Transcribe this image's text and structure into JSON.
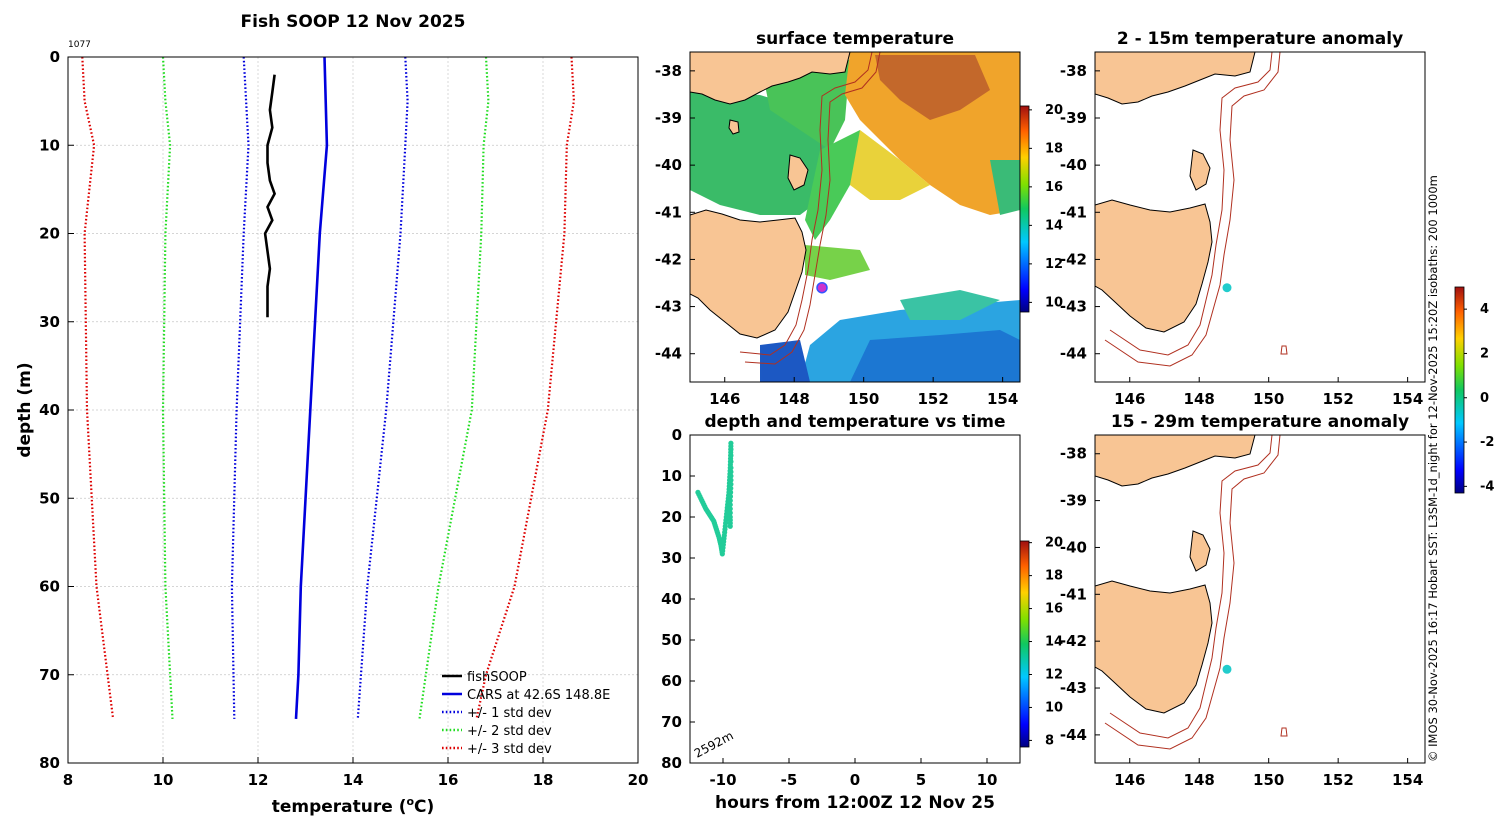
{
  "chart_data": [
    {
      "id": "profile",
      "type": "line",
      "title": "Fish SOOP 12 Nov 2025",
      "corner_label": "1077",
      "xlabel_prefix": "temperature (",
      "xlabel_sup": "o",
      "xlabel_suffix": "C)",
      "ylabel": "depth (m)",
      "xlim": [
        8,
        20
      ],
      "ylim": [
        0,
        80
      ],
      "xticks": [
        8,
        10,
        12,
        14,
        16,
        18,
        20
      ],
      "yticks": [
        0,
        10,
        20,
        30,
        40,
        50,
        60,
        70,
        80
      ],
      "legend": [
        {
          "label": "fishSOOP",
          "color": "#000000",
          "style": "solid"
        },
        {
          "label": "CARS at 42.6S 148.8E",
          "color": "#0000dd",
          "style": "solid"
        },
        {
          "label": "+/- 1 std dev",
          "color": "#0000dd",
          "style": "dotted"
        },
        {
          "label": "+/- 2 std dev",
          "color": "#22dd22",
          "style": "dotted"
        },
        {
          "label": "+/- 3 std dev",
          "color": "#dd0000",
          "style": "dotted"
        }
      ],
      "series": [
        {
          "name": "fishSOOP",
          "color": "#000000",
          "style": "solid",
          "points": [
            [
              12.35,
              2
            ],
            [
              12.3,
              4
            ],
            [
              12.25,
              6
            ],
            [
              12.3,
              8
            ],
            [
              12.2,
              10
            ],
            [
              12.2,
              12
            ],
            [
              12.25,
              14
            ],
            [
              12.35,
              15.5
            ],
            [
              12.2,
              17
            ],
            [
              12.3,
              18.5
            ],
            [
              12.15,
              20
            ],
            [
              12.2,
              22
            ],
            [
              12.25,
              24
            ],
            [
              12.2,
              26
            ],
            [
              12.2,
              28
            ],
            [
              12.2,
              29.5
            ]
          ]
        },
        {
          "name": "CARS",
          "color": "#0000dd",
          "style": "solid",
          "points": [
            [
              13.4,
              0
            ],
            [
              13.45,
              10
            ],
            [
              13.3,
              20
            ],
            [
              13.1,
              40
            ],
            [
              12.9,
              60
            ],
            [
              12.85,
              70
            ],
            [
              12.8,
              75
            ]
          ]
        },
        {
          "name": "+1 std dev",
          "color": "#0000dd",
          "style": "dotted",
          "points": [
            [
              15.1,
              0
            ],
            [
              15.15,
              5
            ],
            [
              15.1,
              10
            ],
            [
              15.0,
              20
            ],
            [
              14.7,
              40
            ],
            [
              14.3,
              60
            ],
            [
              14.1,
              75
            ]
          ]
        },
        {
          "name": "-1 std dev",
          "color": "#0000dd",
          "style": "dotted",
          "points": [
            [
              11.7,
              0
            ],
            [
              11.75,
              5
            ],
            [
              11.8,
              10
            ],
            [
              11.7,
              20
            ],
            [
              11.55,
              40
            ],
            [
              11.45,
              60
            ],
            [
              11.5,
              75
            ]
          ]
        },
        {
          "name": "+2 std dev",
          "color": "#22dd22",
          "style": "dotted",
          "points": [
            [
              16.8,
              0
            ],
            [
              16.85,
              5
            ],
            [
              16.75,
              10
            ],
            [
              16.7,
              20
            ],
            [
              16.5,
              40
            ],
            [
              15.8,
              60
            ],
            [
              15.4,
              75
            ]
          ]
        },
        {
          "name": "-2 std dev",
          "color": "#22dd22",
          "style": "dotted",
          "points": [
            [
              10.0,
              0
            ],
            [
              10.05,
              5
            ],
            [
              10.15,
              10
            ],
            [
              10.05,
              20
            ],
            [
              10.0,
              40
            ],
            [
              10.05,
              60
            ],
            [
              10.2,
              75
            ]
          ]
        },
        {
          "name": "+3 std dev",
          "color": "#dd0000",
          "style": "dotted",
          "points": [
            [
              18.6,
              0
            ],
            [
              18.65,
              5
            ],
            [
              18.5,
              10
            ],
            [
              18.45,
              20
            ],
            [
              18.1,
              40
            ],
            [
              17.4,
              60
            ],
            [
              16.8,
              70
            ],
            [
              16.6,
              75
            ]
          ]
        },
        {
          "name": "-3 std dev",
          "color": "#dd0000",
          "style": "dotted",
          "points": [
            [
              8.3,
              0
            ],
            [
              8.35,
              5
            ],
            [
              8.55,
              10
            ],
            [
              8.35,
              20
            ],
            [
              8.4,
              40
            ],
            [
              8.6,
              60
            ],
            [
              8.95,
              75
            ]
          ]
        }
      ]
    },
    {
      "id": "sst",
      "type": "heatmap",
      "title": "surface temperature",
      "xlim": [
        145,
        154.5
      ],
      "ylim": [
        -44.6,
        -37.6
      ],
      "xticks": [
        146,
        148,
        150,
        152,
        154
      ],
      "yticks": [
        -38,
        -39,
        -40,
        -41,
        -42,
        -43,
        -44
      ],
      "colorbar": {
        "min": 9.5,
        "max": 20.2,
        "ticks": [
          10,
          12,
          14,
          16,
          18,
          20
        ]
      },
      "marker": {
        "lon": 148.8,
        "lat": -42.6,
        "color": "#cc33cc"
      }
    },
    {
      "id": "anom_upper",
      "type": "heatmap",
      "title": "2 - 15m temperature anomaly",
      "xlim": [
        145,
        154.5
      ],
      "ylim": [
        -44.6,
        -37.6
      ],
      "xticks": [
        146,
        148,
        150,
        152,
        154
      ],
      "yticks": [
        -38,
        -39,
        -40,
        -41,
        -42,
        -43,
        -44
      ],
      "marker": {
        "lon": 148.8,
        "lat": -42.6,
        "color": "#22cccc"
      }
    },
    {
      "id": "depth_time",
      "type": "scatter",
      "title": "depth and temperature vs time",
      "xlabel": "hours from 12:00Z 12 Nov 25",
      "xlim": [
        -12.5,
        12.5
      ],
      "ylim": [
        0,
        80
      ],
      "xticks": [
        -10,
        -5,
        0,
        5,
        10
      ],
      "yticks": [
        0,
        10,
        20,
        30,
        40,
        50,
        60,
        70,
        80
      ],
      "annotation": "2592m",
      "point_color": "#22cc99",
      "points": [
        [
          -11.9,
          14
        ],
        [
          -11.6,
          16
        ],
        [
          -11.3,
          18
        ],
        [
          -11.0,
          19.5
        ],
        [
          -10.7,
          21
        ],
        [
          -10.5,
          23
        ],
        [
          -10.3,
          25
        ],
        [
          -10.15,
          27
        ],
        [
          -10.05,
          29
        ],
        [
          -9.95,
          26
        ],
        [
          -9.85,
          23
        ],
        [
          -9.75,
          20
        ],
        [
          -9.65,
          17
        ],
        [
          -9.55,
          14
        ],
        [
          -9.5,
          11
        ],
        [
          -9.45,
          8
        ],
        [
          -9.42,
          5
        ],
        [
          -9.4,
          2
        ],
        [
          -9.4,
          8
        ],
        [
          -9.4,
          12
        ],
        [
          -9.45,
          16
        ],
        [
          -9.45,
          20
        ],
        [
          -9.45,
          23
        ]
      ],
      "colorbar": {
        "min": 7.6,
        "max": 20.1,
        "ticks": [
          8,
          10,
          12,
          14,
          16,
          18,
          20
        ]
      }
    },
    {
      "id": "anom_lower",
      "type": "heatmap",
      "title": "15 - 29m temperature anomaly",
      "xlim": [
        145,
        154.5
      ],
      "ylim": [
        -44.6,
        -37.6
      ],
      "xticks": [
        146,
        148,
        150,
        152,
        154
      ],
      "yticks": [
        -38,
        -39,
        -40,
        -41,
        -42,
        -43,
        -44
      ],
      "marker": {
        "lon": 148.8,
        "lat": -42.6,
        "color": "#22cccc"
      }
    },
    {
      "id": "anom_colorbar",
      "type": "heatmap",
      "colorbar": {
        "min": -4.3,
        "max": 5.0,
        "ticks": [
          -4,
          -2,
          0,
          2,
          4
        ]
      }
    }
  ],
  "footer_text": "© IMOS 30-Nov-2025 16:17 Hobart SST: L3SM-1d_night for 12-Nov-2025 15:20Z isobaths: 200  1000m",
  "colors": {
    "land": "#f8c594",
    "isobath": "#b03020",
    "grid": "#c8c8c8"
  }
}
